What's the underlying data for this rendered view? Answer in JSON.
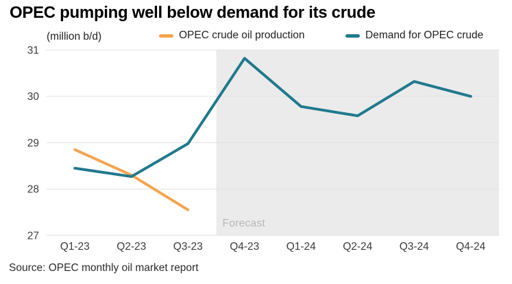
{
  "title": "OPEC pumping well below demand for its crude",
  "unit_label": "(million b/d)",
  "legend": {
    "items": [
      {
        "label": "OPEC crude oil production",
        "color": "#f3a44e"
      },
      {
        "label": "Demand for OPEC crude",
        "color": "#20798d"
      }
    ]
  },
  "forecast_label": "Forecast",
  "source": "Source: OPEC monthly oil market report",
  "colors": {
    "production_line": "#f3a44e",
    "demand_line": "#20798d",
    "forecast_bg": "#ebebeb",
    "gridline": "#e2e2e2",
    "forecast_text": "#b9b9b9",
    "tick_text": "#3a3a3a"
  },
  "chart_data": {
    "type": "line",
    "categories": [
      "Q1-23",
      "Q2-23",
      "Q3-23",
      "Q4-23",
      "Q1-24",
      "Q2-24",
      "Q3-24",
      "Q4-24"
    ],
    "series": [
      {
        "name": "OPEC crude oil production",
        "color": "#f3a44e",
        "values": [
          28.85,
          28.3,
          27.55,
          null,
          null,
          null,
          null,
          null
        ]
      },
      {
        "name": "Demand for OPEC crude",
        "color": "#20798d",
        "values": [
          28.45,
          28.27,
          28.98,
          30.82,
          29.78,
          29.58,
          30.32,
          30.0
        ]
      }
    ],
    "title": "OPEC pumping well below demand for its crude",
    "xlabel": "",
    "ylabel": "(million b/d)",
    "ylim": [
      27,
      31
    ],
    "yticks": [
      27,
      28,
      29,
      30,
      31
    ],
    "grid": true,
    "legend_position": "top",
    "forecast": {
      "label": "Forecast",
      "start_after_category": "Q3-23",
      "start_after_index": 2
    }
  }
}
